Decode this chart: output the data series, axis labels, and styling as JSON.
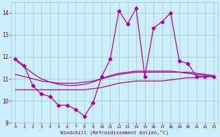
{
  "xlabel": "Windchill (Refroidissement éolien,°C)",
  "bg_color": "#cceeff",
  "grid_color": "#99cccc",
  "line_color": "#aa00aa",
  "xlim": [
    -0.5,
    23.5
  ],
  "ylim": [
    9,
    14.5
  ],
  "yticks": [
    9,
    10,
    11,
    12,
    13,
    14
  ],
  "xticks": [
    0,
    1,
    2,
    3,
    4,
    5,
    6,
    7,
    8,
    9,
    10,
    11,
    12,
    13,
    14,
    15,
    16,
    17,
    18,
    19,
    20,
    21,
    22,
    23
  ],
  "main_x": [
    0,
    1,
    2,
    3,
    4,
    5,
    6,
    7,
    8,
    9,
    10,
    11,
    12,
    13,
    14,
    15,
    16,
    17,
    18,
    19,
    20,
    21,
    22,
    23
  ],
  "main_y": [
    11.9,
    11.6,
    10.7,
    10.3,
    10.2,
    9.8,
    9.8,
    9.6,
    9.3,
    9.9,
    11.1,
    11.9,
    14.1,
    13.5,
    14.2,
    11.1,
    13.3,
    13.6,
    14.0,
    11.8,
    11.7,
    11.1,
    11.1,
    11.1
  ],
  "smooth1_x": [
    0,
    1,
    2,
    3,
    4,
    5,
    6,
    7,
    8,
    9,
    10,
    11,
    12,
    13,
    14,
    15,
    16,
    17,
    18,
    19,
    20,
    21,
    22,
    23
  ],
  "smooth1_y": [
    11.85,
    11.55,
    11.25,
    11.0,
    10.85,
    10.75,
    10.7,
    10.7,
    10.75,
    10.85,
    11.0,
    11.15,
    11.25,
    11.3,
    11.35,
    11.35,
    11.35,
    11.35,
    11.35,
    11.3,
    11.25,
    11.2,
    11.15,
    11.1
  ],
  "smooth2_x": [
    0,
    1,
    2,
    3,
    4,
    5,
    6,
    7,
    8,
    9,
    10,
    11,
    12,
    13,
    14,
    15,
    16,
    17,
    18,
    19,
    20,
    21,
    22,
    23
  ],
  "smooth2_y": [
    10.5,
    10.5,
    10.5,
    10.5,
    10.5,
    10.5,
    10.5,
    10.5,
    10.5,
    10.55,
    10.6,
    10.7,
    10.8,
    10.85,
    10.9,
    10.9,
    10.9,
    10.9,
    10.95,
    11.0,
    11.05,
    11.05,
    11.1,
    11.1
  ],
  "smooth3_x": [
    0,
    1,
    2,
    3,
    4,
    5,
    6,
    7,
    8,
    9,
    10,
    11,
    12,
    13,
    14,
    15,
    16,
    17,
    18,
    19,
    20,
    21,
    22,
    23
  ],
  "smooth3_y": [
    11.2,
    11.1,
    11.0,
    10.9,
    10.85,
    10.8,
    10.8,
    10.8,
    10.85,
    10.9,
    11.0,
    11.1,
    11.2,
    11.25,
    11.3,
    11.3,
    11.3,
    11.3,
    11.3,
    11.3,
    11.3,
    11.25,
    11.2,
    11.15
  ]
}
